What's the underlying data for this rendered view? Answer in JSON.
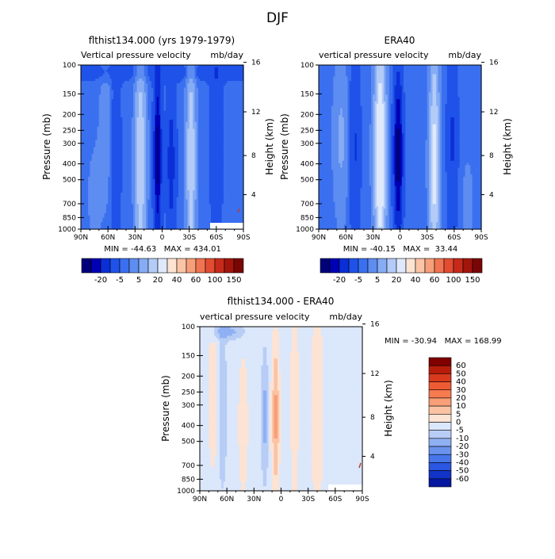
{
  "figure": {
    "title": "DJF",
    "panels": [
      {
        "id": "model",
        "title": "flthist134.000 (yrs 1979-1979)",
        "subtitle_left": "Vertical pressure velocity",
        "subtitle_right": "mb/day",
        "stats": "MIN = -44.63   MAX = 434.01"
      },
      {
        "id": "obs",
        "title": "ERA40",
        "subtitle_left": "vertical pressure velocity",
        "subtitle_right": "mb/day",
        "stats": "MIN = -40.15   MAX =  33.44"
      },
      {
        "id": "diff",
        "title": "flthist134.000 - ERA40",
        "subtitle_left": "vertical pressure velocity",
        "subtitle_right": "mb/day",
        "stats": "MIN = -30.94   MAX = 168.99"
      }
    ],
    "colorbar_abs": {
      "labels": [
        "-20",
        "-5",
        "5",
        "20",
        "40",
        "60",
        "100",
        "150"
      ],
      "colors": [
        "#00007a",
        "#0000b4",
        "#0a2fd7",
        "#1f52e8",
        "#3a70ef",
        "#5e8df1",
        "#86acf4",
        "#b3cbf7",
        "#dfe9fb",
        "#fde3d2",
        "#fbc4a6",
        "#f79f7a",
        "#f07451",
        "#e24c31",
        "#c72a1a",
        "#a3150c",
        "#7a0505"
      ]
    },
    "colorbar_diff": {
      "labels": [
        "60",
        "50",
        "40",
        "30",
        "20",
        "10",
        "5",
        "0",
        "-5",
        "-10",
        "-20",
        "-30",
        "-40",
        "-50",
        "-60"
      ],
      "colors": [
        "#800000",
        "#b81c0b",
        "#d93a1d",
        "#ee5b33",
        "#f67b4f",
        "#f89f78",
        "#fbc3a4",
        "#fde3d3",
        "#dbe7fa",
        "#b7cdf6",
        "#8fb0f2",
        "#6a93ee",
        "#4676ea",
        "#2a56e1",
        "#1233c8",
        "#0516a0"
      ]
    },
    "axes": {
      "ylabel_left": "Pressure (mb)",
      "ylabel_right": "Height (km)",
      "pressure_ticks": [
        "100",
        "150",
        "200",
        "250",
        "300",
        "400",
        "500",
        "700",
        "850",
        "1000"
      ],
      "height_ticks": [
        "4",
        "8",
        "12",
        "16"
      ],
      "lat_ticks": [
        "90N",
        "60N",
        "30N",
        "0",
        "30S",
        "60S",
        "90S"
      ]
    }
  },
  "chart_data": [
    {
      "type": "heatmap",
      "title": "flthist134.000 (yrs 1979-1979)",
      "field": "Vertical pressure velocity",
      "units": "mb/day",
      "x": [
        90,
        60,
        30,
        0,
        -30,
        -60,
        -90
      ],
      "y_pressure_mb": [
        100,
        150,
        200,
        250,
        300,
        400,
        500,
        700,
        850,
        1000
      ],
      "min": -44.63,
      "max": 434.01,
      "features": [
        {
          "lat": 24,
          "type": "descent",
          "value": 12
        },
        {
          "lat": -32,
          "type": "descent",
          "value": 12
        },
        {
          "lat": 5,
          "type": "ascent",
          "value": -40
        },
        {
          "lat": -10,
          "type": "ascent",
          "value": -20
        },
        {
          "lat": 52,
          "type": "ascent",
          "value": -15
        },
        {
          "lat": -60,
          "type": "ascent",
          "value": -15
        }
      ]
    },
    {
      "type": "heatmap",
      "title": "ERA40",
      "field": "vertical pressure velocity",
      "units": "mb/day",
      "x": [
        90,
        60,
        30,
        0,
        -30,
        -60,
        -90
      ],
      "y_pressure_mb": [
        100,
        150,
        200,
        250,
        300,
        400,
        500,
        700,
        850,
        1000
      ],
      "min": -40.15,
      "max": 33.44,
      "features": [
        {
          "lat": 22,
          "type": "descent",
          "value": 20
        },
        {
          "lat": -38,
          "type": "descent",
          "value": 15
        },
        {
          "lat": 2,
          "type": "ascent",
          "value": -40
        },
        {
          "lat": 50,
          "type": "ascent",
          "value": -15
        },
        {
          "lat": -58,
          "type": "ascent",
          "value": -15
        }
      ]
    },
    {
      "type": "heatmap",
      "title": "flthist134.000 - ERA40",
      "field": "vertical pressure velocity",
      "units": "mb/day",
      "x": [
        90,
        60,
        30,
        0,
        -30,
        -60,
        -90
      ],
      "y_pressure_mb": [
        100,
        150,
        200,
        250,
        300,
        400,
        500,
        700,
        850,
        1000
      ],
      "min": -30.94,
      "max": 168.99,
      "features": [
        {
          "lat": 6,
          "type": "positive",
          "value": 10
        },
        {
          "lat": 18,
          "type": "negative",
          "value": -10
        },
        {
          "lat": -15,
          "type": "positive",
          "value": 5
        },
        {
          "lat": -40,
          "type": "positive",
          "value": 5
        },
        {
          "lat": 40,
          "type": "positive",
          "value": 5
        }
      ]
    }
  ]
}
